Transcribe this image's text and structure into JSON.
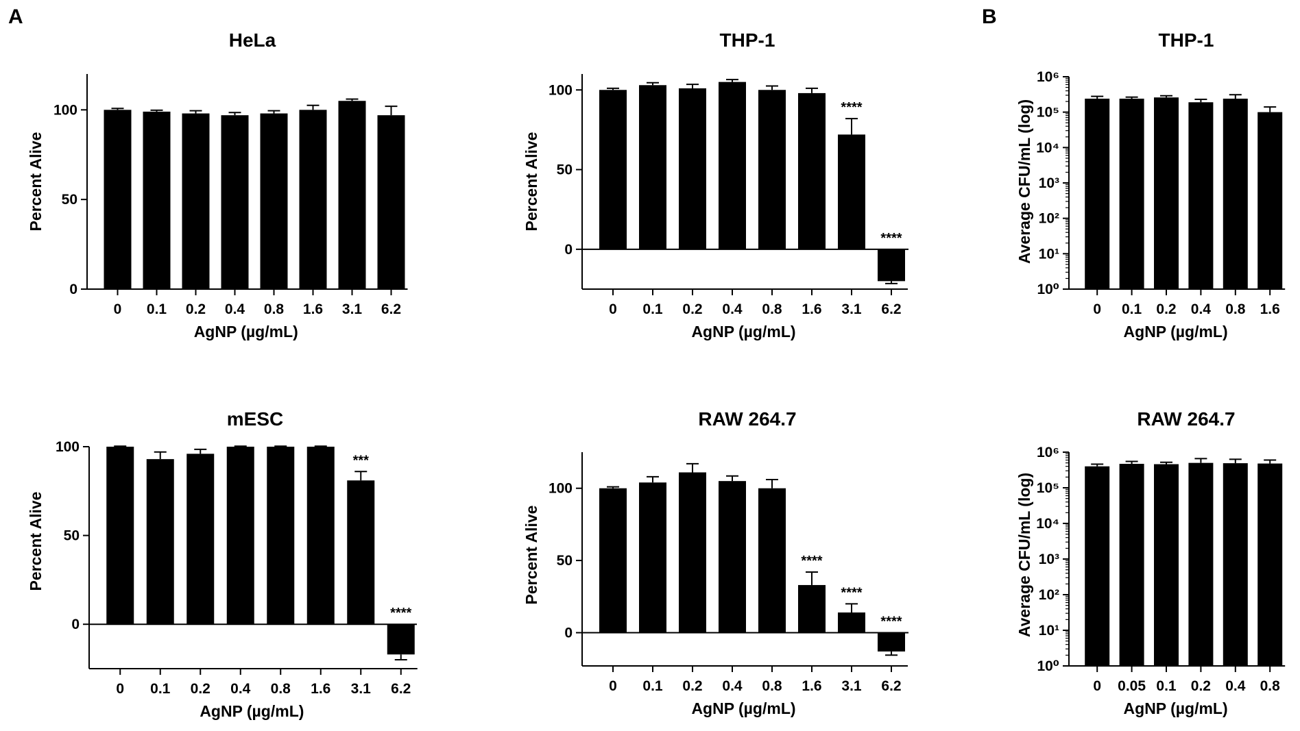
{
  "panel_labels": [
    "A",
    "B"
  ],
  "chart_data": [
    {
      "type": "bar",
      "title": "HeLa",
      "xlabel": "AgNP (µg/mL)",
      "ylabel": "Percent Alive",
      "categories": [
        "0",
        "0.1",
        "0.2",
        "0.4",
        "0.8",
        "1.6",
        "3.1",
        "6.2"
      ],
      "values": [
        100,
        99,
        98,
        97,
        98,
        100,
        105,
        97
      ],
      "errors": [
        0.8,
        0.8,
        1.5,
        1.5,
        1.5,
        2.5,
        1,
        5
      ],
      "significance": [
        "",
        "",
        "",
        "",
        "",
        "",
        "",
        ""
      ],
      "ylim": [
        0,
        120
      ],
      "yticks": [
        0,
        50,
        100
      ],
      "yscale": "linear"
    },
    {
      "type": "bar",
      "title": "THP-1",
      "xlabel": "AgNP (µg/mL)",
      "ylabel": "Percent Alive",
      "categories": [
        "0",
        "0.1",
        "0.2",
        "0.4",
        "0.8",
        "1.6",
        "3.1",
        "6.2"
      ],
      "values": [
        100,
        103,
        101,
        105,
        100,
        98,
        72,
        -20
      ],
      "errors": [
        1,
        1.5,
        2.5,
        1.5,
        2.5,
        3,
        10,
        1.5
      ],
      "significance": [
        "",
        "",
        "",
        "",
        "",
        "",
        "****",
        "****"
      ],
      "ylim": [
        -25,
        110
      ],
      "yticks": [
        0,
        50,
        100
      ],
      "yscale": "linear"
    },
    {
      "type": "bar",
      "title": "THP-1",
      "xlabel": "AgNP (µg/mL)",
      "ylabel": "Average CFU/mL (log)",
      "categories": [
        "0",
        "0.1",
        "0.2",
        "0.4",
        "0.8",
        "1.6"
      ],
      "values": [
        240000,
        240000,
        260000,
        190000,
        240000,
        100000
      ],
      "errors": [
        40000,
        25000,
        30000,
        40000,
        70000,
        40000
      ],
      "significance": [
        "",
        "",
        "",
        "",
        "",
        ""
      ],
      "ylim": [
        1,
        1000000
      ],
      "yticks": [
        "10⁰",
        "10¹",
        "10²",
        "10³",
        "10⁴",
        "10⁵",
        "10⁶"
      ],
      "yscale": "log"
    },
    {
      "type": "bar",
      "title": "mESC",
      "xlabel": "AgNP (µg/mL)",
      "ylabel": "Percent Alive",
      "categories": [
        "0",
        "0.1",
        "0.2",
        "0.4",
        "0.8",
        "1.6",
        "3.1",
        "6.2"
      ],
      "values": [
        100,
        93,
        96,
        100,
        100,
        100,
        81,
        -17
      ],
      "errors": [
        0.3,
        4,
        2.5,
        0.3,
        0.3,
        0.3,
        5,
        3
      ],
      "significance": [
        "",
        "",
        "",
        "",
        "",
        "",
        "***",
        "****"
      ],
      "ylim": [
        -25,
        100
      ],
      "yticks": [
        0,
        50,
        100
      ],
      "yscale": "linear"
    },
    {
      "type": "bar",
      "title": "RAW 264.7",
      "xlabel": "AgNP (µg/mL)",
      "ylabel": "Percent Alive",
      "categories": [
        "0",
        "0.1",
        "0.2",
        "0.4",
        "0.8",
        "1.6",
        "3.1",
        "6.2"
      ],
      "values": [
        100,
        104,
        111,
        105,
        100,
        33,
        14,
        -13
      ],
      "errors": [
        1,
        4,
        6,
        3.5,
        6,
        9,
        6,
        2.5
      ],
      "significance": [
        "",
        "",
        "",
        "",
        "",
        "****",
        "****",
        "****"
      ],
      "ylim": [
        -23,
        125
      ],
      "yticks": [
        0,
        50,
        100
      ],
      "yscale": "linear"
    },
    {
      "type": "bar",
      "title": "RAW 264.7",
      "xlabel": "AgNP (µg/mL)",
      "ylabel": "Average CFU/mL (log)",
      "categories": [
        "0",
        "0.05",
        "0.1",
        "0.2",
        "0.4",
        "0.8"
      ],
      "values": [
        400000,
        470000,
        460000,
        500000,
        490000,
        480000
      ],
      "errors": [
        60000,
        80000,
        60000,
        160000,
        140000,
        120000
      ],
      "significance": [
        "",
        "",
        "",
        "",
        "",
        ""
      ],
      "ylim": [
        1,
        1000000
      ],
      "yticks": [
        "10⁰",
        "10¹",
        "10²",
        "10³",
        "10⁴",
        "10⁵",
        "10⁶"
      ],
      "yscale": "log"
    }
  ]
}
